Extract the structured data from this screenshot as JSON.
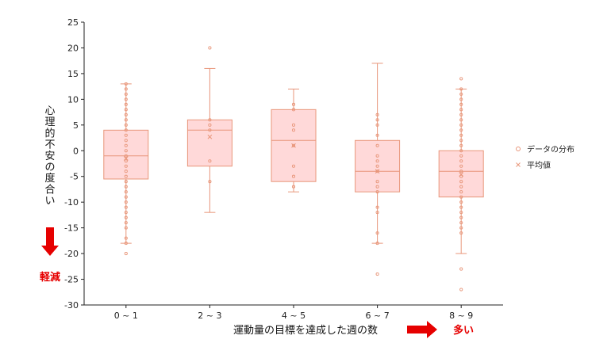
{
  "chart_data": {
    "type": "box",
    "xlabel": "運動量の目標を達成した週の数",
    "ylabel": "心理的不安の度合い",
    "ylim": [
      -30,
      25
    ],
    "yticks": [
      25,
      20,
      15,
      10,
      5,
      0,
      -5,
      -10,
      -15,
      -20,
      -25,
      -30
    ],
    "categories": [
      "0 ~ 1",
      "2 ~ 3",
      "4 ~ 5",
      "6 ~ 7",
      "8 ~ 9"
    ],
    "boxes": [
      {
        "whisker_low": -18,
        "q1": -5.5,
        "median": -1,
        "q3": 4,
        "whisker_high": 13,
        "mean": -1.5,
        "points": [
          13,
          12,
          11,
          10,
          9,
          8,
          7,
          6,
          5,
          4,
          3,
          2,
          1,
          0,
          -1,
          -2,
          -3,
          -4,
          -5,
          -6,
          -7,
          -8,
          -9,
          -10,
          -11,
          -12,
          -13,
          -14,
          -15,
          -17,
          -18,
          -20
        ]
      },
      {
        "whisker_low": -12,
        "q1": -3,
        "median": 4,
        "q3": 6,
        "whisker_high": 16,
        "mean": 2.7,
        "points": [
          20,
          6,
          5,
          4,
          -2,
          -6
        ]
      },
      {
        "whisker_low": -8,
        "q1": -6,
        "median": 2,
        "q3": 8,
        "whisker_high": 12,
        "mean": 1,
        "points": [
          9,
          8,
          5,
          4,
          1,
          -3,
          -5,
          -7
        ]
      },
      {
        "whisker_low": -18,
        "q1": -8,
        "median": -4,
        "q3": 2,
        "whisker_high": 17,
        "mean": -4,
        "points": [
          7,
          6,
          5,
          3,
          1,
          -1,
          -2,
          -3,
          -4,
          -6,
          -7,
          -8,
          -11,
          -12,
          -16,
          -18,
          -24
        ]
      },
      {
        "whisker_low": -20,
        "q1": -9,
        "median": -4,
        "q3": 0,
        "whisker_high": 12,
        "mean": -4.6,
        "points": [
          14,
          12,
          11,
          10,
          9,
          8,
          7,
          6,
          5,
          4,
          3,
          2,
          1,
          0,
          -1,
          -2,
          -3,
          -4,
          -5,
          -6,
          -7,
          -8,
          -9,
          -10,
          -11,
          -12,
          -13,
          -14,
          -15,
          -16,
          -23,
          -27
        ]
      }
    ],
    "legend": [
      {
        "label": "データの分布",
        "marker": "circle"
      },
      {
        "label": "平均値",
        "marker": "x"
      }
    ],
    "legend_position": "right",
    "grid": false
  },
  "annotations": {
    "left_arrow_label": "軽減",
    "right_arrow_label": "多い"
  },
  "colors": {
    "box_fill": "#ffd9d9",
    "box_stroke": "#e8967a",
    "point_stroke": "#e8967a",
    "accent_red": "#e60000"
  }
}
